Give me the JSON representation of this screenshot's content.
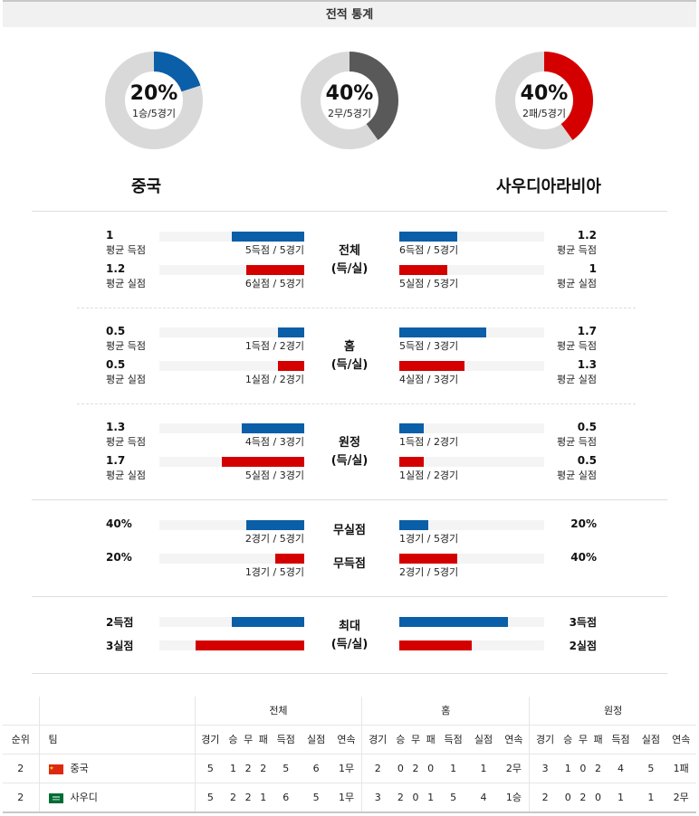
{
  "header": {
    "title": "전적 통계"
  },
  "donuts": [
    {
      "pct": "20%",
      "sub": "1승/5경기",
      "fraction": 0.2,
      "color": "#0b5ea8"
    },
    {
      "pct": "40%",
      "sub": "2무/5경기",
      "fraction": 0.4,
      "color": "#595959"
    },
    {
      "pct": "40%",
      "sub": "2패/5경기",
      "fraction": 0.4,
      "color": "#d40000"
    }
  ],
  "teams": {
    "home": "중국",
    "away": "사우디아라비아"
  },
  "labels": {
    "avg_scored": "평균 득점",
    "avg_conceded": "평균 실점"
  },
  "sections": {
    "total": {
      "title1": "전체",
      "title2": "(득/실)",
      "home_scored": {
        "value": "1",
        "text": "5득점 / 5경기",
        "fraction": 0.5
      },
      "home_conceded": {
        "value": "1.2",
        "text": "6실점 / 5경기",
        "fraction": 0.4
      },
      "away_scored": {
        "value": "1.2",
        "text": "6득점 / 5경기",
        "fraction": 0.4
      },
      "away_conceded": {
        "value": "1",
        "text": "5실점 / 5경기",
        "fraction": 0.33
      }
    },
    "home": {
      "title1": "홈",
      "title2": "(득/실)",
      "home_scored": {
        "value": "0.5",
        "text": "1득점 / 2경기",
        "fraction": 0.18
      },
      "home_conceded": {
        "value": "0.5",
        "text": "1실점 / 2경기",
        "fraction": 0.18
      },
      "away_scored": {
        "value": "1.7",
        "text": "5득점 / 3경기",
        "fraction": 0.6
      },
      "away_conceded": {
        "value": "1.3",
        "text": "4실점 / 3경기",
        "fraction": 0.45
      }
    },
    "away": {
      "title1": "원정",
      "title2": "(득/실)",
      "home_scored": {
        "value": "1.3",
        "text": "4득점 / 3경기",
        "fraction": 0.43
      },
      "home_conceded": {
        "value": "1.7",
        "text": "5실점 / 3경기",
        "fraction": 0.57
      },
      "away_scored": {
        "value": "0.5",
        "text": "1득점 / 2경기",
        "fraction": 0.17
      },
      "away_conceded": {
        "value": "0.5",
        "text": "1실점 / 2경기",
        "fraction": 0.17
      }
    },
    "clean": {
      "cleansheet": "무실점",
      "noscore": "무득점",
      "home_cleansheet": {
        "value": "40%",
        "text": "2경기 / 5경기",
        "fraction": 0.4
      },
      "home_noscore": {
        "value": "20%",
        "text": "1경기 / 5경기",
        "fraction": 0.2
      },
      "away_cleansheet": {
        "value": "20%",
        "text": "1경기 / 5경기",
        "fraction": 0.2
      },
      "away_noscore": {
        "value": "40%",
        "text": "2경기 / 5경기",
        "fraction": 0.4
      }
    },
    "max": {
      "title1": "최대",
      "title2": "(득/실)",
      "home_scored": {
        "value": "2득점",
        "fraction": 0.5
      },
      "home_conceded": {
        "value": "3실점",
        "fraction": 0.75
      },
      "away_scored": {
        "value": "3득점",
        "fraction": 0.75
      },
      "away_conceded": {
        "value": "2실점",
        "fraction": 0.5
      }
    }
  },
  "table": {
    "groups": [
      "전체",
      "홈",
      "원정"
    ],
    "col_rank": "순위",
    "col_team": "팀",
    "cols": [
      "경기",
      "승",
      "무",
      "패",
      "득점",
      "실점",
      "연속"
    ],
    "rows": [
      {
        "rank": "2",
        "team": "중국",
        "flag": "china",
        "total": [
          "5",
          "1",
          "2",
          "2",
          "5",
          "6",
          "1무"
        ],
        "home": [
          "2",
          "0",
          "2",
          "0",
          "1",
          "1",
          "2무"
        ],
        "away": [
          "3",
          "1",
          "0",
          "2",
          "4",
          "5",
          "1패"
        ]
      },
      {
        "rank": "2",
        "team": "사우디",
        "flag": "saudi",
        "total": [
          "5",
          "2",
          "2",
          "1",
          "6",
          "5",
          "1무"
        ],
        "home": [
          "3",
          "2",
          "0",
          "1",
          "5",
          "4",
          "1승"
        ],
        "away": [
          "2",
          "0",
          "2",
          "0",
          "1",
          "1",
          "2무"
        ]
      }
    ]
  }
}
